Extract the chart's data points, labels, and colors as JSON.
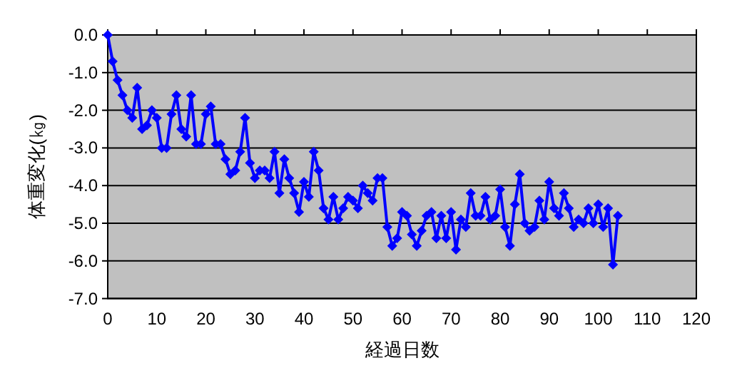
{
  "chart_data": {
    "type": "line",
    "xlabel": "経過日数",
    "ylabel": "体重変化(㎏)",
    "x": [
      0,
      1,
      2,
      3,
      4,
      5,
      6,
      7,
      8,
      9,
      10,
      11,
      12,
      13,
      14,
      15,
      16,
      17,
      18,
      19,
      20,
      21,
      22,
      23,
      24,
      25,
      26,
      27,
      28,
      29,
      30,
      31,
      32,
      33,
      34,
      35,
      36,
      37,
      38,
      39,
      40,
      41,
      42,
      43,
      44,
      45,
      46,
      47,
      48,
      49,
      50,
      51,
      52,
      53,
      54,
      55,
      56,
      57,
      58,
      59,
      60,
      61,
      62,
      63,
      64,
      65,
      66,
      67,
      68,
      69,
      70,
      71,
      72,
      73,
      74,
      75,
      76,
      77,
      78,
      79,
      80,
      81,
      82,
      83,
      84,
      85,
      86,
      87,
      88,
      89,
      90,
      91,
      92,
      93,
      94,
      95,
      96,
      97,
      98,
      99,
      100,
      101,
      102,
      103,
      104
    ],
    "series": [
      {
        "color": "#0000ff",
        "values": [
          0,
          -0.7,
          -1.2,
          -1.6,
          -2.0,
          -2.2,
          -1.4,
          -2.5,
          -2.4,
          -2.0,
          -2.2,
          -3.0,
          -3.0,
          -2.1,
          -1.6,
          -2.5,
          -2.7,
          -1.6,
          -2.9,
          -2.9,
          -2.1,
          -1.9,
          -2.9,
          -2.9,
          -3.3,
          -3.7,
          -3.6,
          -3.1,
          -2.2,
          -3.4,
          -3.8,
          -3.6,
          -3.6,
          -3.8,
          -3.1,
          -4.2,
          -3.3,
          -3.8,
          -4.2,
          -4.7,
          -3.9,
          -4.3,
          -3.1,
          -3.6,
          -4.6,
          -4.9,
          -4.3,
          -4.9,
          -4.6,
          -4.3,
          -4.4,
          -4.6,
          -4.0,
          -4.2,
          -4.4,
          -3.8,
          -3.8,
          -5.1,
          -5.6,
          -5.4,
          -4.7,
          -4.8,
          -5.3,
          -5.6,
          -5.2,
          -4.8,
          -4.7,
          -5.4,
          -4.8,
          -5.4,
          -4.7,
          -5.7,
          -4.9,
          -5.1,
          -4.2,
          -4.8,
          -4.8,
          -4.3,
          -4.9,
          -4.8,
          -4.1,
          -5.1,
          -5.6,
          -4.5,
          -3.7,
          -5.0,
          -5.2,
          -5.1,
          -4.4,
          -4.9,
          -3.9,
          -4.6,
          -4.8,
          -4.2,
          -4.6,
          -5.1,
          -4.9,
          -5.0,
          -4.6,
          -5.0,
          -4.5,
          -5.1,
          -4.6,
          -6.1,
          -4.8
        ]
      }
    ],
    "xlim": [
      0,
      120
    ],
    "xticks": [
      0,
      10,
      20,
      30,
      40,
      50,
      60,
      70,
      80,
      90,
      100,
      110,
      120
    ],
    "ylim": [
      -7,
      0
    ],
    "yticks": [
      {
        "value": 0,
        "label": "0.0"
      },
      {
        "value": -1,
        "label": "-1.0"
      },
      {
        "value": -2,
        "label": "-2.0"
      },
      {
        "value": -3,
        "label": "-3.0"
      },
      {
        "value": -4,
        "label": "-4.0"
      },
      {
        "value": -5,
        "label": "-5.0"
      },
      {
        "value": -6,
        "label": "-6.0"
      },
      {
        "value": -7,
        "label": "-7.0"
      }
    ],
    "grid": "y",
    "marker": "diamond",
    "line_style": "solid"
  }
}
